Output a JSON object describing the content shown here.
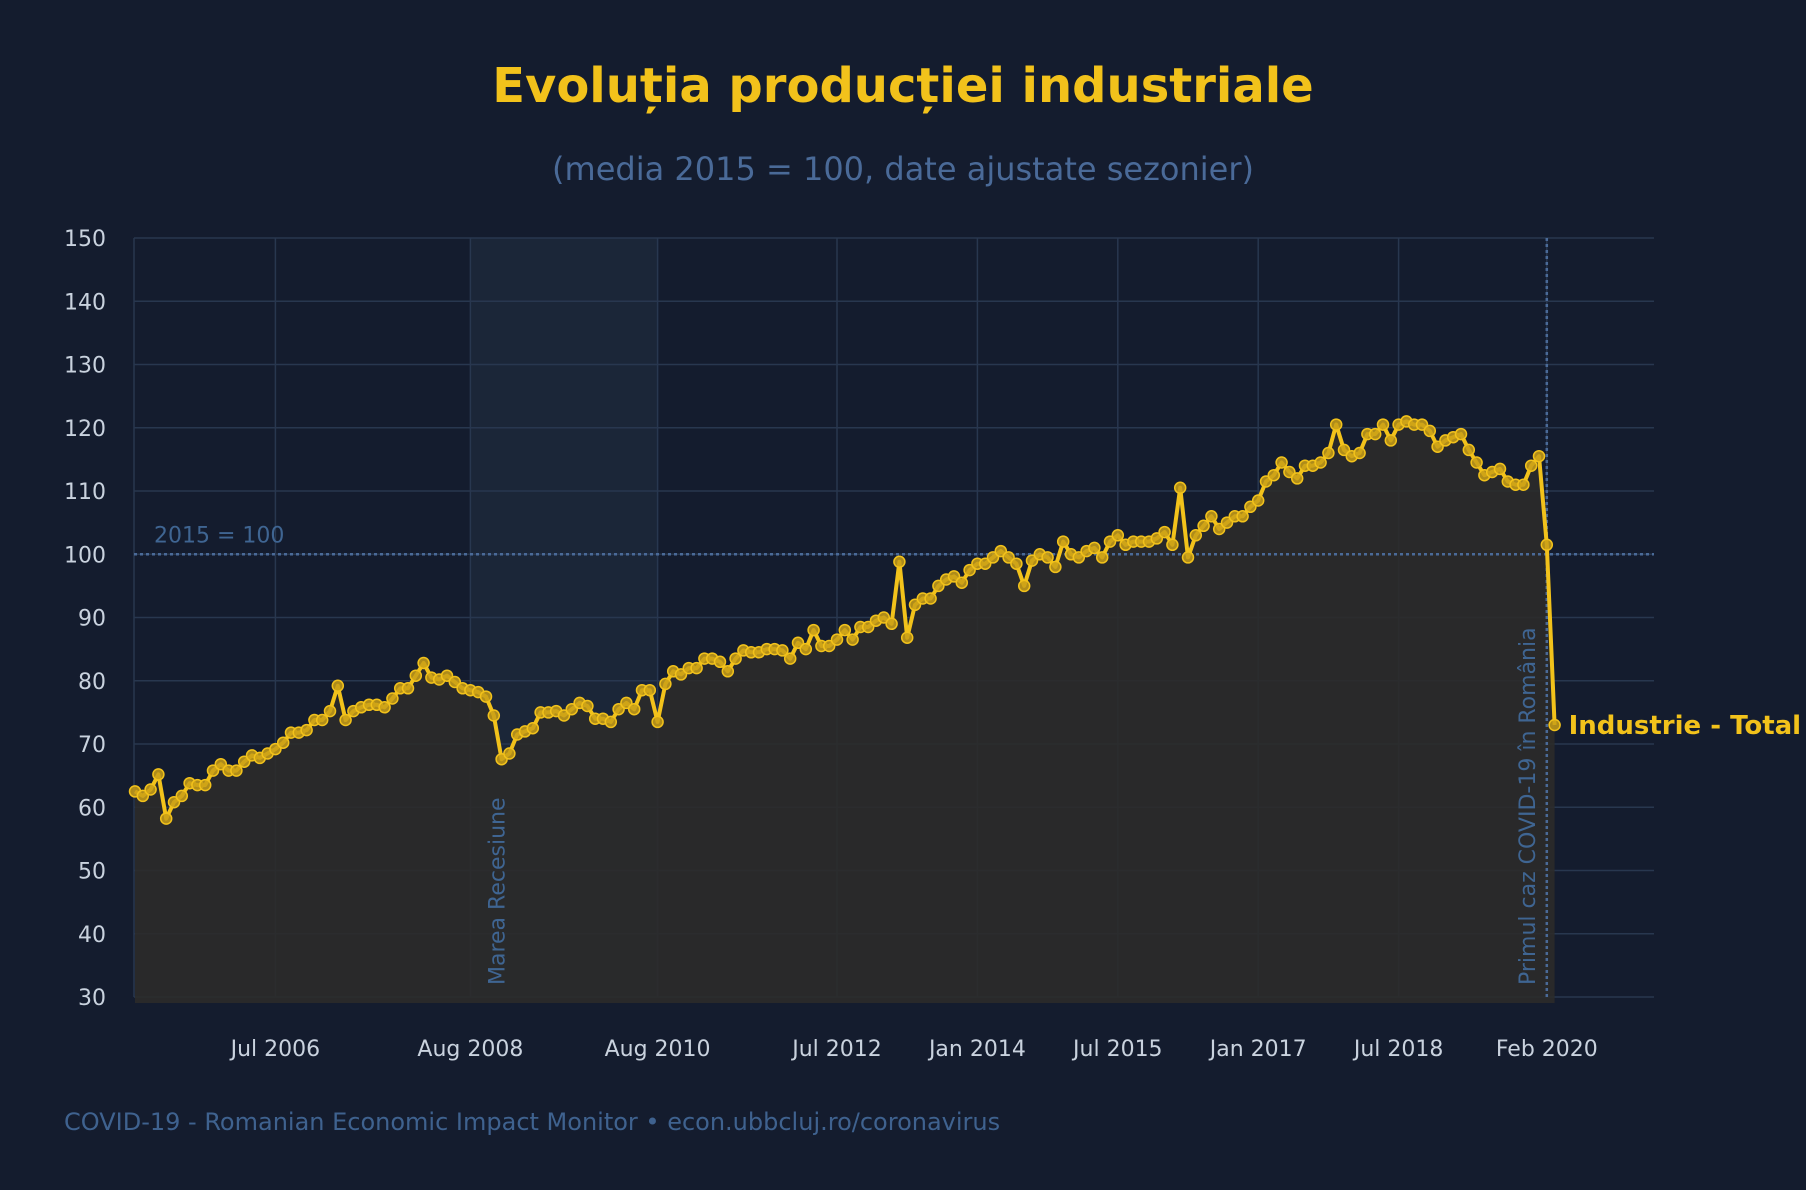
{
  "chart_data": {
    "type": "line",
    "title": "Evoluția producției industriale",
    "subtitle": "(media 2015 = 100, date ajustate sezonier)",
    "series_name": "Industrie - Total",
    "ylim": [
      30,
      150
    ],
    "yticks": [
      30,
      40,
      50,
      60,
      70,
      80,
      90,
      100,
      110,
      120,
      130,
      140,
      150
    ],
    "x_index_range": [
      0,
      170
    ],
    "xticks": [
      {
        "label": "Jul 2006",
        "index": 18
      },
      {
        "label": "Aug 2008",
        "index": 43
      },
      {
        "label": "Aug 2010",
        "index": 67
      },
      {
        "label": "Jul 2012",
        "index": 90
      },
      {
        "label": "Jan 2014",
        "index": 108
      },
      {
        "label": "Jul 2015",
        "index": 126
      },
      {
        "label": "Jan 2017",
        "index": 144
      },
      {
        "label": "Jul 2018",
        "index": 162
      },
      {
        "label": "Feb 2020",
        "index": 181
      }
    ],
    "reference_line": {
      "value": 100,
      "label": "2015 = 100"
    },
    "recession_band": {
      "start_index": 43,
      "end_index": 67,
      "label": "Marea Recesiune"
    },
    "event_line": {
      "index": 181,
      "label": "Primul caz COVID-19 în România"
    },
    "values": [
      62.5,
      61.8,
      62.8,
      65.2,
      58.2,
      60.8,
      61.8,
      63.8,
      63.5,
      63.5,
      65.8,
      66.8,
      65.8,
      65.8,
      67.2,
      68.2,
      67.8,
      68.5,
      69.2,
      70.2,
      71.8,
      71.8,
      72.2,
      73.8,
      73.8,
      75.2,
      79.2,
      73.8,
      75.2,
      75.8,
      76.2,
      76.2,
      75.8,
      77.2,
      78.8,
      78.8,
      80.8,
      82.8,
      80.5,
      80.2,
      80.8,
      79.8,
      78.8,
      78.5,
      78.2,
      77.5,
      74.5,
      67.6,
      68.5,
      71.5,
      72.0,
      72.5,
      75.0,
      75.0,
      75.2,
      74.5,
      75.5,
      76.5,
      76.0,
      74.0,
      74.0,
      73.5,
      75.5,
      76.5,
      75.5,
      78.5,
      78.5,
      73.5,
      79.5,
      81.5,
      81.0,
      82.0,
      82.0,
      83.5,
      83.5,
      83.0,
      81.5,
      83.5,
      84.8,
      84.5,
      84.5,
      85.0,
      85.0,
      84.8,
      83.5,
      86.0,
      85.0,
      88.0,
      85.5,
      85.5,
      86.5,
      88.0,
      86.5,
      88.5,
      88.5,
      89.5,
      90.0,
      89.0,
      98.8,
      86.8,
      92.0,
      93.0,
      93.0,
      95.0,
      96.0,
      96.5,
      95.5,
      97.5,
      98.5,
      98.5,
      99.5,
      100.5,
      99.5,
      98.5,
      95.0,
      99.0,
      100.0,
      99.5,
      98.0,
      102.0,
      100.0,
      99.5,
      100.5,
      101.0,
      99.5,
      102.0,
      103.0,
      101.5,
      102.0,
      102.0,
      102.0,
      102.5,
      103.5,
      101.5,
      110.5,
      99.5,
      103.0,
      104.5,
      106.0,
      104.0,
      105.0,
      106.0,
      106.0,
      107.5,
      108.5,
      111.5,
      112.5,
      114.5,
      113.0,
      112.0,
      114.0,
      114.0,
      114.5,
      116.0,
      120.5,
      116.5,
      115.5,
      116.0,
      119.0,
      119.0,
      120.5,
      118.0,
      120.5,
      121.0,
      120.5,
      120.5,
      119.5,
      117.0,
      118.0,
      118.5,
      119.0,
      116.5,
      114.5,
      112.5,
      113.0,
      113.5,
      111.5,
      111.0,
      111.0,
      114.0,
      115.5,
      101.5,
      73.0
    ]
  },
  "footer": "COVID-19 - Romanian Economic Impact Monitor • econ.ubbcluj.ro/coronavirus",
  "colors": {
    "background": "#141c2e",
    "line": "#f2c21b",
    "grid": "#28374f",
    "reference": "#4a6a98",
    "area_fill": "#2b2b2a",
    "recession_band": "#1b2638",
    "annotation": "#3f6592"
  }
}
